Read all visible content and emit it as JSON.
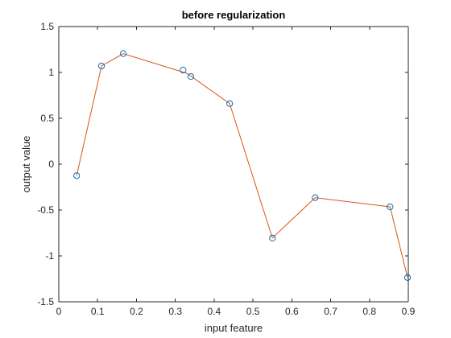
{
  "chart_data": {
    "type": "line",
    "title": "before regularization",
    "xlabel": "input feature",
    "ylabel": "output value",
    "xlim": [
      0,
      0.9
    ],
    "ylim": [
      -1.5,
      1.5
    ],
    "xticks": [
      0,
      0.1,
      0.2,
      0.3,
      0.4,
      0.5,
      0.6,
      0.7,
      0.8,
      0.9
    ],
    "xtick_labels": [
      "0",
      "0.1",
      "0.2",
      "0.3",
      "0.4",
      "0.5",
      "0.6",
      "0.7",
      "0.8",
      "0.9"
    ],
    "yticks": [
      -1.5,
      -1,
      -0.5,
      0,
      0.5,
      1,
      1.5
    ],
    "ytick_labels": [
      "-1.5",
      "-1",
      "-0.5",
      "0",
      "0.5",
      "1",
      "1.5"
    ],
    "grid": false,
    "series": [
      {
        "kind": "markers",
        "marker": "open-circle",
        "color": "#0072BD",
        "x": [
          0.046,
          0.11,
          0.166,
          0.32,
          0.34,
          0.44,
          0.55,
          0.66,
          0.853,
          0.898
        ],
        "y": [
          -0.125,
          1.07,
          1.205,
          1.025,
          0.955,
          0.66,
          -0.805,
          -0.365,
          -0.465,
          -1.235
        ]
      },
      {
        "kind": "line",
        "color": "#D95319",
        "x": [
          0.046,
          0.11,
          0.166,
          0.33,
          0.44,
          0.55,
          0.66,
          0.853,
          0.898
        ],
        "y": [
          -0.125,
          1.07,
          1.205,
          0.99,
          0.66,
          -0.805,
          -0.365,
          -0.465,
          -1.235
        ]
      }
    ]
  }
}
